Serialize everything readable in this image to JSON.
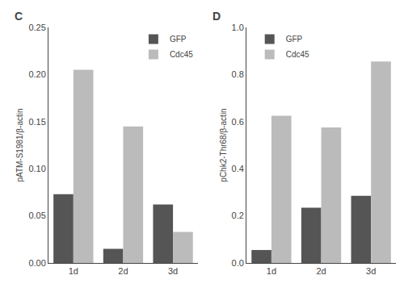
{
  "chart_data": [
    {
      "type": "bar",
      "title": "C",
      "categories": [
        "1d",
        "2d",
        "3d"
      ],
      "series": [
        {
          "name": "GFP",
          "color": "#555555",
          "values": [
            0.073,
            0.015,
            0.062
          ]
        },
        {
          "name": "Cdc45",
          "color": "#bbbbbb",
          "values": [
            0.205,
            0.145,
            0.033
          ]
        }
      ],
      "ylabel": "pATM-S1981/β-actin",
      "ylim": [
        0,
        0.25
      ],
      "yticks": [
        {
          "value": 0,
          "label": "0.00"
        },
        0.05,
        {
          "value": 0.1,
          "label": "0.10"
        },
        0.15,
        {
          "value": 0.2,
          "label": "0.20"
        },
        0.25
      ],
      "legend": "upper right",
      "grid": false
    },
    {
      "type": "bar",
      "title": "D",
      "categories": [
        "1d",
        "2d",
        "3d"
      ],
      "series": [
        {
          "name": "GFP",
          "color": "#555555",
          "values": [
            0.055,
            0.235,
            0.285
          ]
        },
        {
          "name": "Cdc45",
          "color": "#bbbbbb",
          "values": [
            0.625,
            0.575,
            0.855
          ]
        }
      ],
      "ylabel": "pChk2-Thr68/β-actin",
      "ylim": [
        0,
        1.0
      ],
      "yticks": [
        {
          "value": 0,
          "label": "0.0"
        },
        0.2,
        0.4,
        0.6,
        0.8,
        {
          "value": 1,
          "label": "1.0"
        }
      ],
      "legend": "upper left",
      "grid": false
    }
  ]
}
